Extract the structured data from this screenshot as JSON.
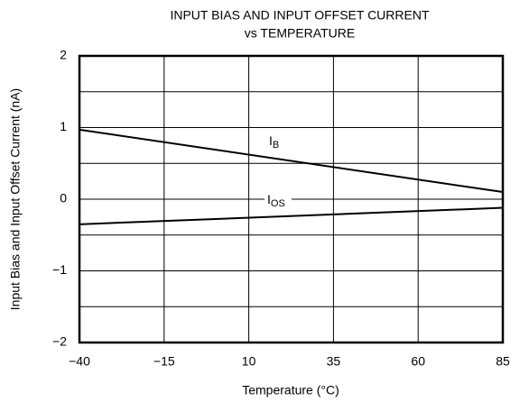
{
  "chart_data": {
    "type": "line",
    "title": [
      "INPUT BIAS AND INPUT OFFSET CURRENT",
      "vs TEMPERATURE"
    ],
    "xlabel": "Temperature (°C)",
    "ylabel": "Input Bias and Input Offset Current (nA)",
    "x": [
      -40,
      85
    ],
    "series": [
      {
        "name": {
          "text": "I",
          "sub": "B"
        },
        "color": "#000000",
        "values": [
          0.97,
          0.1
        ]
      },
      {
        "name": {
          "text": "I",
          "sub": "OS"
        },
        "color": "#000000",
        "values": [
          -0.35,
          -0.12
        ]
      }
    ],
    "xlim": [
      -40,
      85
    ],
    "xticks": [
      {
        "value": -40,
        "label": "−40"
      },
      {
        "value": -15,
        "label": "−15"
      },
      10,
      35,
      60,
      85
    ],
    "ylim": [
      -2,
      2
    ],
    "yticks": [
      {
        "value": -2,
        "label": "−2"
      },
      {
        "value": -1,
        "label": "−1"
      },
      0,
      1,
      2
    ],
    "minor_yticks": [
      -1.5,
      -0.5,
      0.5,
      1.5
    ],
    "grid": true
  }
}
